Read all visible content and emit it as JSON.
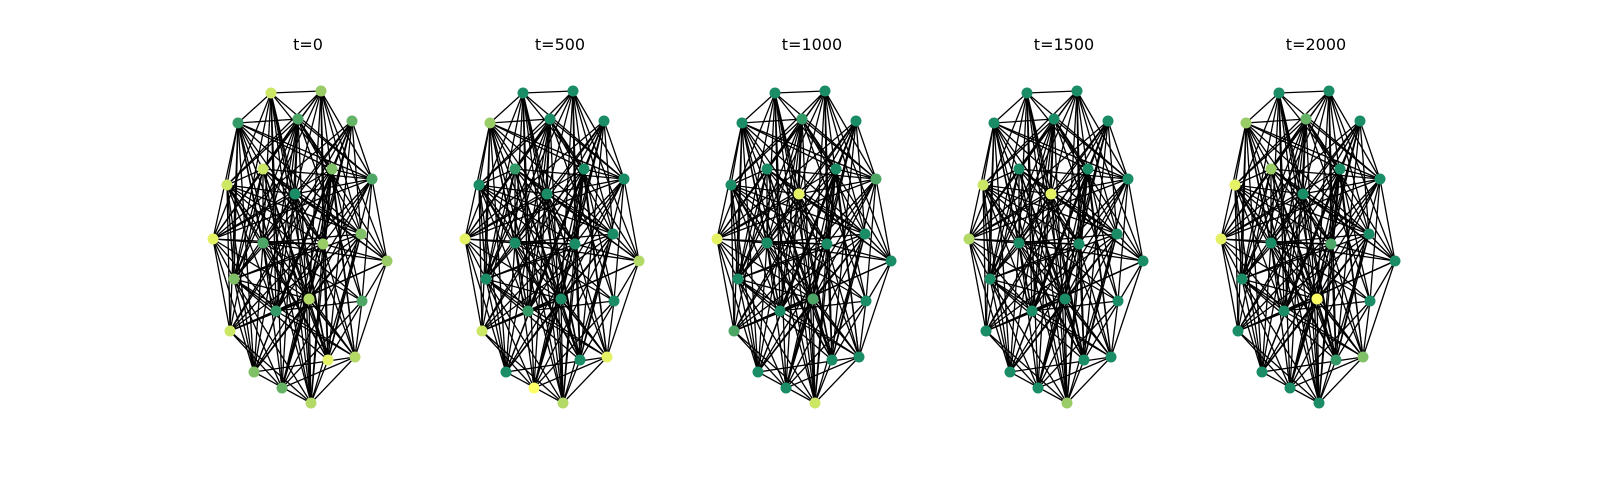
{
  "colormap": {
    "name": "summer",
    "low": "#008066",
    "high": "#ffff66"
  },
  "panels": [
    {
      "title": "t=0",
      "node_values": [
        0.8,
        0.6,
        0.2,
        0.3,
        0.4,
        0.8,
        0.8,
        0.5,
        0.3,
        0.9,
        0.1,
        0.3,
        0.6,
        0.5,
        0.6,
        0.5,
        0.7,
        0.2,
        0.3,
        0.8,
        0.5,
        0.9,
        0.4,
        0.7,
        0.7,
        0.1,
        1.0,
        1.0
      ]
    },
    {
      "title": "t=500",
      "node_values": [
        0.1,
        0.1,
        0.6,
        0.1,
        0.1,
        0.1,
        0.2,
        0.1,
        0.1,
        0.9,
        0.1,
        0.1,
        0.1,
        0.1,
        0.7,
        0.1,
        0.1,
        0.2,
        0.1,
        0.8,
        0.1,
        0.1,
        1.0,
        0.9,
        0.7,
        0.1,
        0.9,
        0.1
      ]
    },
    {
      "title": "t=1000",
      "node_values": [
        0.1,
        0.1,
        0.1,
        0.2,
        0.1,
        0.1,
        0.1,
        0.1,
        0.3,
        0.9,
        0.9,
        0.1,
        0.1,
        0.1,
        0.1,
        0.1,
        0.3,
        0.1,
        0.1,
        0.3,
        0.1,
        0.1,
        0.1,
        0.1,
        0.8,
        0.1,
        1.0,
        0.1
      ]
    },
    {
      "title": "t=1500",
      "node_values": [
        0.1,
        0.1,
        0.1,
        0.1,
        0.1,
        0.8,
        0.1,
        0.1,
        0.1,
        0.7,
        0.9,
        0.1,
        0.1,
        0.1,
        0.1,
        0.1,
        0.1,
        0.1,
        0.1,
        0.1,
        0.1,
        0.1,
        0.1,
        0.1,
        0.6,
        0.1,
        0.2,
        0.1
      ]
    },
    {
      "title": "t=2000",
      "node_values": [
        0.1,
        0.1,
        0.6,
        0.4,
        0.1,
        0.9,
        0.6,
        0.1,
        0.1,
        0.9,
        0.1,
        0.1,
        0.3,
        0.1,
        0.1,
        0.1,
        1.0,
        0.1,
        0.1,
        0.1,
        0.1,
        0.2,
        0.1,
        0.5,
        0.1,
        0.5,
        0.1,
        0.9
      ]
    }
  ]
}
